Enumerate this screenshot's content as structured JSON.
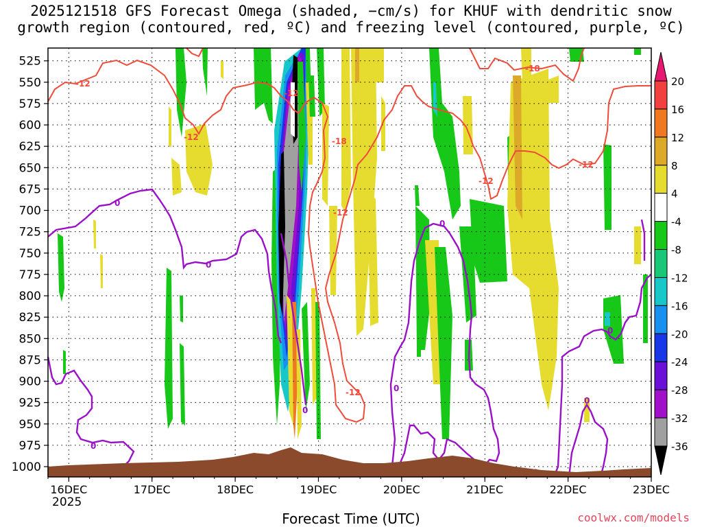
{
  "title": {
    "line1": "2025121518 GFS Forecast Omega (shaded, −cm/s) for KHUF with dendritic snow",
    "line2": "growth region (contoured, red, ºC) and freezing level (contoured, purple, ºC)"
  },
  "footer": {
    "xaxis_title": "Forecast Time (UTC)",
    "credit": "coolwx.com/models",
    "year": "2025"
  },
  "chart_data": {
    "type": "heatmap",
    "title": "2025121518 GFS Forecast Omega (shaded, −cm/s) for KHUF with dendritic snow growth region (contoured, red, ºC) and freezing level (contoured, purple, ºC)",
    "xlabel": "Forecast Time (UTC)",
    "ylabel": "",
    "x_ticks": [
      "16DEC",
      "17DEC",
      "18DEC",
      "19DEC",
      "20DEC",
      "21DEC",
      "22DEC",
      "23DEC"
    ],
    "x_range_days": [
      15.75,
      23.0
    ],
    "y_ticks": [
      525,
      550,
      575,
      600,
      625,
      650,
      675,
      700,
      725,
      750,
      775,
      800,
      825,
      850,
      875,
      900,
      925,
      950,
      975,
      1000
    ],
    "y_range_hpa": [
      510,
      1012
    ],
    "grid": true,
    "colorbar": {
      "labels": [
        "20",
        "16",
        "12",
        "8",
        "4",
        "-4",
        "-8",
        "-12",
        "-16",
        "-20",
        "-24",
        "-28",
        "-32",
        "-36"
      ],
      "colors": [
        "#e8176f",
        "#f04040",
        "#f07820",
        "#dcaa28",
        "#e6dc30",
        "#ffffff",
        "#18c818",
        "#18c878",
        "#18c8c8",
        "#1890f0",
        "#1838e8",
        "#6a10d8",
        "#a010c8",
        "#a0a0a0",
        "#000000"
      ]
    },
    "contours": {
      "dgz_red": {
        "color": "#f04a3a",
        "labels": [
          "-12",
          "-12",
          "-12",
          "-18",
          "-12",
          "-12",
          "-12",
          "-18",
          "-12"
        ]
      },
      "freezing_purple": {
        "color": "#9a10c8",
        "labels": [
          "0",
          "0",
          "0",
          "0",
          "0",
          "0",
          "0",
          "0"
        ]
      }
    },
    "terrain_color": "#8b4a2b"
  }
}
